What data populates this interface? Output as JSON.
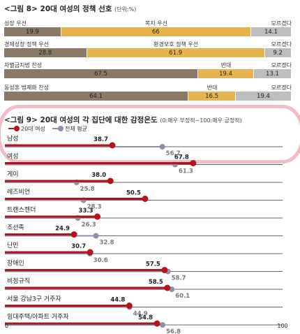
{
  "chart_data": [
    {
      "type": "bar",
      "stacked": true,
      "title": "<그림 8> 20대 여성의 정책 선호",
      "unit_note": "(단위:%)",
      "rows": [
        {
          "labels": [
            "성장 우선",
            "복지 우선",
            "모르겠다"
          ],
          "values": [
            19.9,
            66,
            14.1
          ]
        },
        {
          "labels": [
            "경제성장 정책 우선",
            "환경보호 정책 우선",
            "모르겠다"
          ],
          "values": [
            28.8,
            61.9,
            9.2
          ]
        },
        {
          "labels": [
            "차별금지법 찬성",
            "반대",
            "모르겠다"
          ],
          "values": [
            67.5,
            19.4,
            13.1
          ]
        },
        {
          "labels": [
            "동성혼 법제화 찬성",
            "반대",
            "모르겠다"
          ],
          "values": [
            64.1,
            16.5,
            19.4
          ]
        }
      ],
      "segment_colors": [
        "#8a7966",
        "#e7b34f",
        "#bdbdbd"
      ]
    },
    {
      "type": "scatter",
      "title": "<그림 9> 20대 여성의 각 집단에 대한 감정온도",
      "subtitle": "(0:매우 부정적~100:매우 긍정적)",
      "series": [
        {
          "name": "20대 여성",
          "color": "#b5121b"
        },
        {
          "name": "전체 평균",
          "color": "#8c8fa8"
        }
      ],
      "xlim": [
        0,
        100
      ],
      "x_ticks": [
        "0",
        "100"
      ],
      "categories": [
        "남성",
        "여성",
        "게이",
        "레즈비언",
        "트랜스젠더",
        "조선족",
        "난민",
        "장애인",
        "비정규직",
        "서울 강남3구 거주자",
        "임대주택/아파트 거주자"
      ],
      "women20": [
        38.7,
        67.8,
        38.0,
        50.5,
        33.3,
        24.9,
        30.7,
        57.5,
        58.5,
        44.8,
        54.8
      ],
      "overall": [
        56.7,
        61.3,
        25.8,
        28.3,
        26.3,
        32.8,
        30.6,
        58.7,
        60.1,
        44.9,
        56.8
      ],
      "women20_labels": [
        "38.7",
        "67.8",
        "38.0",
        "50.5",
        "33.3",
        "24.9",
        "30.7",
        "57.5",
        "58.5",
        "44.8",
        "54.8"
      ],
      "overall_labels": [
        "56.7",
        "61.3",
        "25.8",
        "28.3",
        "26.3",
        "32.8",
        "30.6",
        "58.7",
        "60.1",
        "44.9",
        "56.8"
      ]
    }
  ]
}
